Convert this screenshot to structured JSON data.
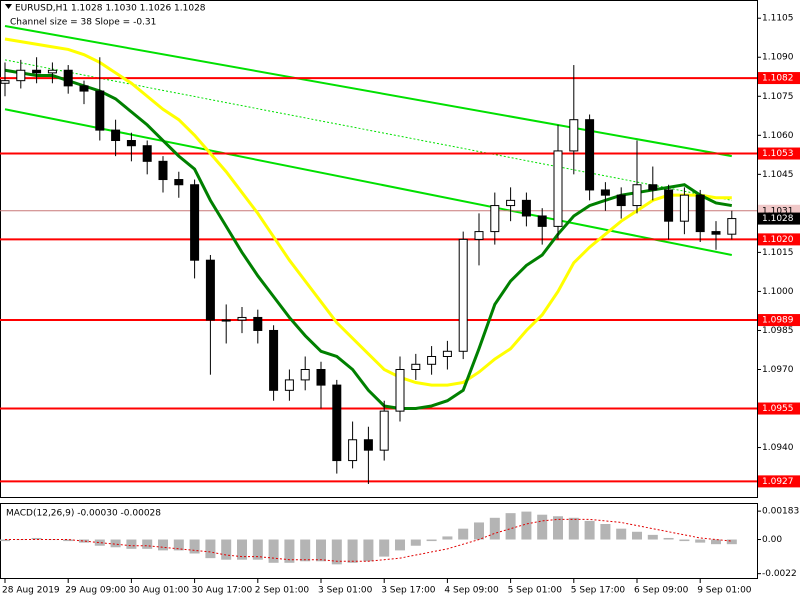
{
  "chart_data": {
    "type": "candlestick",
    "title": "EURUSD,H1 1.1028 1.1030 1.1026 1.1028",
    "subtitle": "Channel size = 38 Slope = -0.31",
    "categories": [
      "28 Aug 2019",
      null,
      null,
      null,
      "29 Aug 09:00",
      null,
      null,
      null,
      "30 Aug 01:00",
      null,
      null,
      null,
      "30 Aug 17:00",
      null,
      null,
      null,
      "2 Sep 01:00",
      null,
      null,
      null,
      "3 Sep 01:00",
      null,
      null,
      null,
      "3 Sep 17:00",
      null,
      null,
      null,
      "4 Sep 09:00",
      null,
      null,
      null,
      "5 Sep 01:00",
      null,
      null,
      null,
      "5 Sep 17:00",
      null,
      null,
      null,
      "6 Sep 09:00",
      null,
      null,
      null,
      "9 Sep 01:00",
      null,
      null
    ],
    "open": [
      1.108,
      1.1081,
      1.1085,
      1.1084,
      1.1085,
      1.1079,
      1.1077,
      1.1062,
      1.1058,
      1.1056,
      1.105,
      1.1043,
      1.1041,
      1.1012,
      1.0989,
      1.0989,
      1.099,
      1.0985,
      1.0962,
      1.0966,
      1.097,
      1.0964,
      1.0935,
      1.0943,
      1.0939,
      1.0954,
      1.097,
      1.0972,
      1.0975,
      1.0977,
      1.102,
      1.1023,
      1.1033,
      1.1035,
      1.1029,
      1.1025,
      1.1054,
      1.1066,
      1.1039,
      1.1037,
      1.1033,
      1.1041,
      1.1039,
      1.1027,
      1.1037,
      1.1023,
      1.1022
    ],
    "high": [
      1.1088,
      1.1089,
      1.109,
      1.1088,
      1.1087,
      1.1081,
      1.109,
      1.1066,
      1.1061,
      1.1058,
      1.1052,
      1.1046,
      1.1043,
      1.1014,
      1.0995,
      1.0994,
      1.0993,
      1.0987,
      1.097,
      1.0975,
      1.0973,
      1.0966,
      1.095,
      1.0948,
      1.0958,
      1.0975,
      1.0976,
      1.0979,
      1.0981,
      1.1023,
      1.103,
      1.1038,
      1.104,
      1.1038,
      1.1032,
      1.1064,
      1.1087,
      1.1068,
      1.1042,
      1.104,
      1.1058,
      1.1048,
      1.1041,
      1.104,
      1.1039,
      1.1027,
      1.1031
    ],
    "low": [
      1.1075,
      1.1078,
      1.108,
      1.108,
      1.1076,
      1.1072,
      1.1058,
      1.1052,
      1.105,
      1.1045,
      1.1038,
      1.1036,
      1.1005,
      1.0968,
      1.098,
      1.0984,
      1.098,
      1.0958,
      1.0958,
      1.0962,
      1.0955,
      1.093,
      1.0932,
      1.0926,
      1.0935,
      1.095,
      1.0966,
      1.0968,
      1.097,
      1.0974,
      1.101,
      1.1018,
      1.1027,
      1.1025,
      1.1018,
      1.102,
      1.1045,
      1.1035,
      1.1031,
      1.1028,
      1.103,
      1.1035,
      1.102,
      1.1022,
      1.1019,
      1.1016,
      1.102
    ],
    "close": [
      1.1081,
      1.1085,
      1.1084,
      1.1085,
      1.1079,
      1.1077,
      1.1062,
      1.1058,
      1.1056,
      1.105,
      1.1043,
      1.1041,
      1.1012,
      1.0989,
      1.0989,
      1.099,
      1.0985,
      1.0962,
      1.0966,
      1.097,
      1.0964,
      1.0935,
      1.0943,
      1.0939,
      1.0954,
      1.097,
      1.0972,
      1.0975,
      1.0977,
      1.102,
      1.1023,
      1.1033,
      1.1035,
      1.1029,
      1.1025,
      1.1054,
      1.1066,
      1.1039,
      1.1037,
      1.1033,
      1.1041,
      1.1039,
      1.1027,
      1.1037,
      1.1023,
      1.1022,
      1.1028
    ],
    "moving_averages": [
      {
        "color": "#ffff00",
        "values": [
          1.1097,
          1.1096,
          1.1095,
          1.1094,
          1.1093,
          1.1091,
          1.1088,
          1.1084,
          1.108,
          1.1075,
          1.107,
          1.1066,
          1.106,
          1.1053,
          1.1046,
          1.1038,
          1.103,
          1.1021,
          1.1012,
          1.1004,
          1.0996,
          1.0988,
          1.0982,
          1.0976,
          1.097,
          1.0967,
          1.0965,
          1.0964,
          1.0964,
          1.0965,
          1.0969,
          1.0974,
          1.0978,
          1.0985,
          1.0991,
          1.1,
          1.1011,
          1.1017,
          1.1022,
          1.1027,
          1.1031,
          1.1035,
          1.1037,
          1.1037,
          1.1037,
          1.1036,
          1.1036
        ]
      },
      {
        "color": "#008000",
        "values": [
          1.1085,
          1.1084,
          1.1083,
          1.1083,
          1.1081,
          1.1079,
          1.1077,
          1.1074,
          1.1069,
          1.1064,
          1.1058,
          1.1052,
          1.1047,
          1.1035,
          1.1025,
          1.1015,
          1.1006,
          1.0998,
          1.099,
          1.0983,
          1.0977,
          1.0975,
          1.097,
          1.0962,
          1.0956,
          1.0955,
          1.0955,
          1.0956,
          1.0958,
          1.0962,
          1.0978,
          1.0995,
          1.1004,
          1.101,
          1.1014,
          1.1022,
          1.1029,
          1.1033,
          1.1035,
          1.1037,
          1.1038,
          1.1039,
          1.104,
          1.1041,
          1.1037,
          1.1034,
          1.1033
        ]
      }
    ],
    "channel": [
      {
        "color": "#00e000",
        "start": 1.1102,
        "end": 1.1052,
        "dashed": false
      },
      {
        "color": "#00e000",
        "start": 1.1089,
        "end": 1.1035,
        "dashed": true
      },
      {
        "color": "#00e000",
        "start": 1.107,
        "end": 1.1014,
        "dashed": false
      }
    ],
    "levels": [
      1.1082,
      1.1053,
      {
        "value": 1.102,
        "label": "1.1020"
      },
      1.0989,
      1.0955,
      1.0927
    ],
    "level_color": "#ff0000",
    "last_price": 1.1028,
    "ask_price": 1.1031,
    "ylim": [
      1.0921,
      1.1112
    ],
    "yticks": [
      1.1105,
      {
        "value": 1.109,
        "label": "1.1090"
      },
      1.1075,
      {
        "value": 1.106,
        "label": "1.1060"
      },
      1.1045,
      1.1015,
      {
        "value": 1.1,
        "label": "1.1000"
      },
      1.0985,
      {
        "value": 1.097,
        "label": "1.0970"
      },
      {
        "value": 1.094,
        "label": "1.0940"
      }
    ],
    "macd": {
      "title": "MACD(12,26,9) -0.00030 -0.00028",
      "histogram": [
        -0.0001,
        0.0,
        0.0001,
        0.0,
        -0.0001,
        -0.0002,
        -0.0004,
        -0.0005,
        -0.0006,
        -0.0006,
        -0.0007,
        -0.0007,
        -0.0009,
        -0.0012,
        -0.0013,
        -0.0013,
        -0.0013,
        -0.0015,
        -0.0015,
        -0.0014,
        -0.0014,
        -0.0016,
        -0.0015,
        -0.0014,
        -0.0011,
        -0.0007,
        -0.0004,
        -0.0001,
        0.0002,
        0.0007,
        0.0011,
        0.0014,
        0.0017,
        0.0018,
        0.0016,
        0.0015,
        0.0014,
        0.0012,
        0.001,
        0.0007,
        0.0005,
        0.0003,
        0.0001,
        -0.0001,
        -0.0002,
        -0.0003,
        -0.0003
      ],
      "signal": [
        0,
        0,
        0,
        0,
        0,
        -0.0001,
        -0.0002,
        -0.0003,
        -0.0004,
        -0.0004,
        -0.0005,
        -0.0006,
        -0.0007,
        -0.0008,
        -0.001,
        -0.0011,
        -0.0011,
        -0.0012,
        -0.0013,
        -0.0013,
        -0.0013,
        -0.0014,
        -0.0014,
        -0.0014,
        -0.0013,
        -0.0012,
        -0.001,
        -0.0008,
        -0.0006,
        -0.0003,
        0.0,
        0.0004,
        0.0007,
        0.001,
        0.0012,
        0.0013,
        0.0013,
        0.0013,
        0.0012,
        0.0011,
        0.0009,
        0.0007,
        0.0005,
        0.0003,
        0.0001,
        0.0,
        -0.0001
      ],
      "histogram_color": "#b4b4b4",
      "signal_color": "#e00000",
      "ylim": [
        -0.00248,
        0.00229
      ],
      "yticks": [
        0.00183,
        {
          "value": 0,
          "label": "0.00"
        },
        -0.0022
      ]
    }
  }
}
